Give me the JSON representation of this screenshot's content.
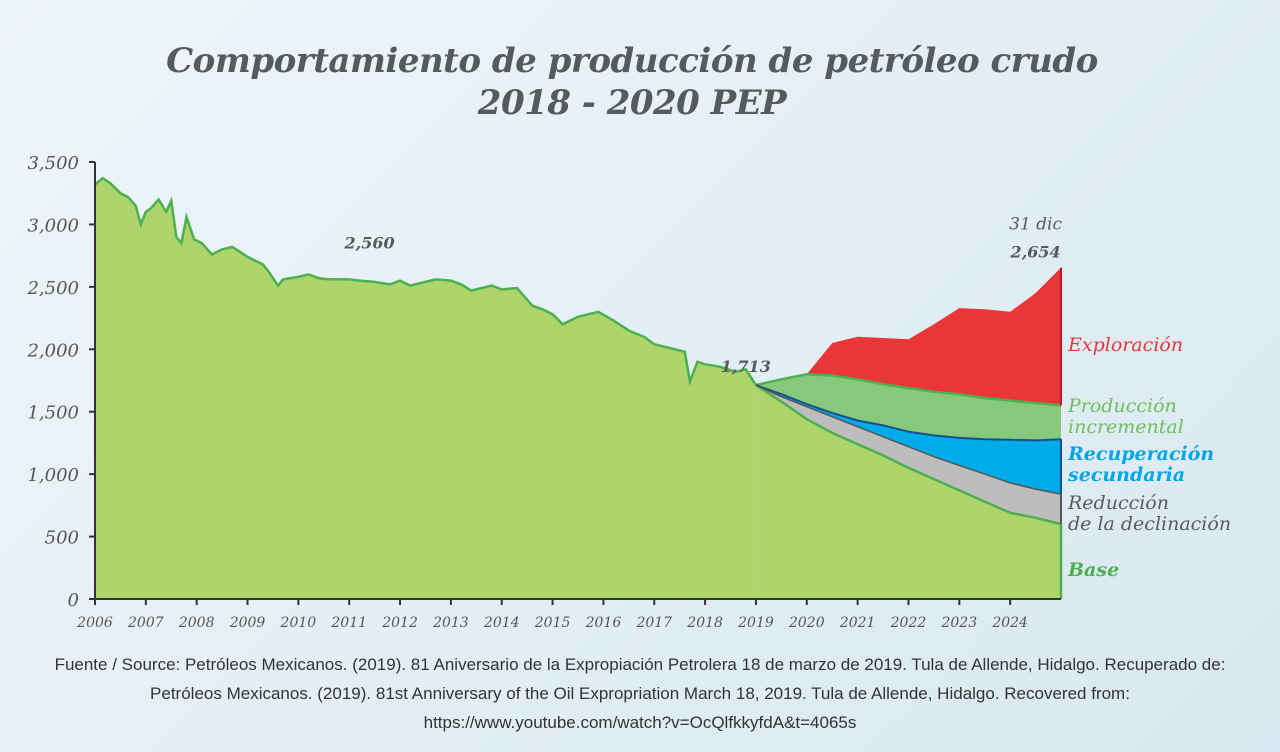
{
  "title": {
    "line1": "Comportamiento de producción de petróleo crudo",
    "line2": "2018 - 2020 PEP"
  },
  "chart_data": {
    "type": "area",
    "ylim": [
      0,
      3500
    ],
    "yticks": [
      0,
      500,
      1000,
      1500,
      2000,
      2500,
      3000,
      3500
    ],
    "ytick_labels": [
      "0",
      "500",
      "1,000",
      "1,500",
      "2,000",
      "2,500",
      "3,000",
      "3,500"
    ],
    "xlim": [
      2006,
      2025
    ],
    "xticks": [
      2006,
      2007,
      2008,
      2009,
      2010,
      2011,
      2012,
      2013,
      2014,
      2015,
      2016,
      2017,
      2018,
      2019,
      2020,
      2021,
      2022,
      2023,
      2024
    ],
    "colors": {
      "historical": "#aed46c",
      "line": "#4caf50",
      "exploracion": "#ea3539",
      "incremental": "#86c97c",
      "secundaria": "#00abea",
      "reduccion": "#bdbdbd",
      "base": "#aed46c"
    },
    "historical": {
      "x": [
        2006.0,
        2006.15,
        2006.3,
        2006.5,
        2006.65,
        2006.8,
        2006.9,
        2007.0,
        2007.1,
        2007.25,
        2007.4,
        2007.5,
        2007.6,
        2007.7,
        2007.8,
        2007.95,
        2008.1,
        2008.3,
        2008.5,
        2008.7,
        2009.0,
        2009.3,
        2009.4,
        2009.6,
        2009.7,
        2010.0,
        2010.2,
        2010.4,
        2010.6,
        2011.0,
        2011.2,
        2011.5,
        2011.8,
        2012.0,
        2012.2,
        2012.5,
        2012.7,
        2013.0,
        2013.2,
        2013.4,
        2013.6,
        2013.8,
        2014.0,
        2014.3,
        2014.6,
        2014.8,
        2015.0,
        2015.2,
        2015.3,
        2015.5,
        2015.9,
        2016.2,
        2016.5,
        2016.8,
        2017.0,
        2017.3,
        2017.6,
        2017.7,
        2017.85,
        2018.0,
        2018.3,
        2018.6,
        2018.8,
        2019.0
      ],
      "y": [
        3320,
        3370,
        3330,
        3250,
        3220,
        3150,
        3000,
        3100,
        3130,
        3200,
        3100,
        3190,
        2900,
        2850,
        3060,
        2880,
        2850,
        2760,
        2800,
        2820,
        2740,
        2680,
        2630,
        2510,
        2560,
        2580,
        2600,
        2570,
        2560,
        2560,
        2550,
        2540,
        2520,
        2550,
        2510,
        2540,
        2560,
        2550,
        2520,
        2470,
        2490,
        2510,
        2480,
        2490,
        2350,
        2320,
        2280,
        2200,
        2220,
        2260,
        2300,
        2230,
        2150,
        2100,
        2040,
        2010,
        1980,
        1740,
        1900,
        1880,
        1860,
        1820,
        1840,
        1713
      ]
    },
    "projection": {
      "x": [
        2019.0,
        2019.5,
        2020.0,
        2020.5,
        2021.0,
        2021.5,
        2022.0,
        2022.5,
        2023.0,
        2023.5,
        2024.0,
        2024.5,
        2025.0
      ],
      "series": [
        {
          "name": "Base",
          "values": [
            1713,
            1580,
            1440,
            1330,
            1240,
            1150,
            1050,
            960,
            870,
            780,
            690,
            650,
            600
          ]
        },
        {
          "name": "Reducción de la declinación",
          "values": [
            1713,
            1620,
            1540,
            1460,
            1380,
            1300,
            1220,
            1140,
            1070,
            1000,
            930,
            880,
            840
          ]
        },
        {
          "name": "Recuperación secundaria",
          "values": [
            1713,
            1640,
            1560,
            1490,
            1430,
            1390,
            1340,
            1310,
            1290,
            1280,
            1275,
            1270,
            1280
          ]
        },
        {
          "name": "Producción incremental",
          "values": [
            1713,
            1760,
            1800,
            1790,
            1760,
            1720,
            1690,
            1660,
            1640,
            1610,
            1590,
            1570,
            1550
          ]
        },
        {
          "name": "Exploración",
          "values": [
            null,
            null,
            1800,
            2050,
            2100,
            2090,
            2080,
            2200,
            2330,
            2320,
            2300,
            2450,
            2654
          ]
        }
      ]
    },
    "annotations": [
      {
        "text": "2,560",
        "x": 2011.4,
        "y": 2560
      },
      {
        "text": "1,713",
        "x": 2018.8,
        "y": 1713
      },
      {
        "text": "31 dic",
        "x": 2024.5,
        "y": 2654
      },
      {
        "text": "2,654",
        "x": 2024.5,
        "y": 2654
      }
    ],
    "legend": [
      "Exploración",
      "Producción incremental",
      "Recuperación secundaria",
      "Reducción de la declinación",
      "Base"
    ]
  },
  "legend_labels": {
    "exploracion": "Exploración",
    "incremental_1": "Producción",
    "incremental_2": "incremental",
    "secundaria_1": "Recuperación",
    "secundaria_2": "secundaria",
    "reduccion_1": "Reducción",
    "reduccion_2": "de la declinación",
    "base": "Base"
  },
  "source": {
    "line1": "Fuente / Source: Petróleos Mexicanos. (2019). 81 Aniversario de la Expropiación Petrolera 18 de marzo de 2019. Tula de Allende, Hidalgo. Recuperado de:",
    "line2": "Petróleos Mexicanos. (2019). 81st Anniversary of the Oil Expropriation March 18, 2019. Tula de Allende, Hidalgo. Recovered from:",
    "line3": "https://www.youtube.com/watch?v=OcQlfkkyfdA&t=4065s"
  }
}
